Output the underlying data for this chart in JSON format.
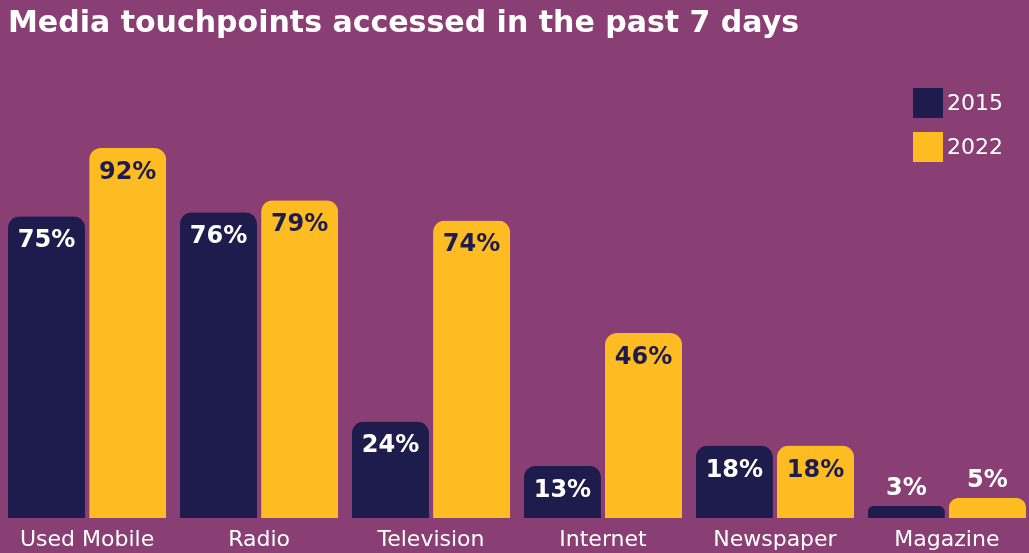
{
  "chart_data": {
    "type": "bar",
    "title": "Media touchpoints accessed in the past 7 days",
    "categories": [
      "Used Mobile",
      "Radio",
      "Television",
      "Internet",
      "Newspaper",
      "Magazine"
    ],
    "series": [
      {
        "name": "2015",
        "color": "#1e1b4d",
        "values": [
          75,
          76,
          24,
          13,
          18,
          3
        ],
        "value_labels": [
          "75%",
          "76%",
          "24%",
          "13%",
          "18%",
          "3%"
        ]
      },
      {
        "name": "2022",
        "color": "#fdbd22",
        "values": [
          92,
          79,
          74,
          46,
          18,
          5
        ],
        "value_labels": [
          "92%",
          "79%",
          "74%",
          "46%",
          "18%",
          "5%"
        ]
      }
    ],
    "legend": "top right",
    "grid": false
  }
}
